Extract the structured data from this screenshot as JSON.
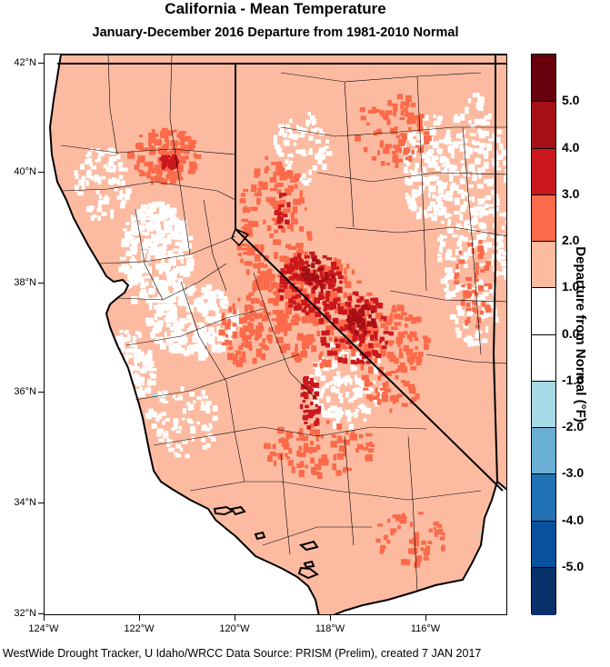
{
  "title": "California - Mean Temperature",
  "subtitle": "January-December 2016  Departure from 1981-2010 Normal",
  "lat_ticks": [
    "42°N",
    "40°N",
    "38°N",
    "36°N",
    "34°N",
    "32°N"
  ],
  "lon_ticks": [
    "124°W",
    "122°W",
    "120°W",
    "118°W",
    "116°W"
  ],
  "colorbar": {
    "title": "Departure from Normal (°F)",
    "labels": [
      "5.0",
      "4.0",
      "3.0",
      "2.0",
      "1.0",
      "0.0",
      "-1.0",
      "-2.0",
      "-3.0",
      "-4.0",
      "-5.0"
    ],
    "colors": [
      "#67000d",
      "#a50f15",
      "#cb181d",
      "#fb6a4a",
      "#fcbba1",
      "#ffffff",
      "#ffffff",
      "#a6dbe6",
      "#6baed6",
      "#2171b5",
      "#08519c",
      "#08306b"
    ]
  },
  "colors": {
    "land_base": "#fcbba1",
    "warm": "#fb6a4a",
    "hot": "#cb181d",
    "hotter": "#a50f15",
    "cool": "#ffffff",
    "cold": "#a6dbe6"
  },
  "credit": "WestWide Drought Tracker, U Idaho/WRCC Data Source: PRISM (Prelim), created  7 JAN 2017"
}
